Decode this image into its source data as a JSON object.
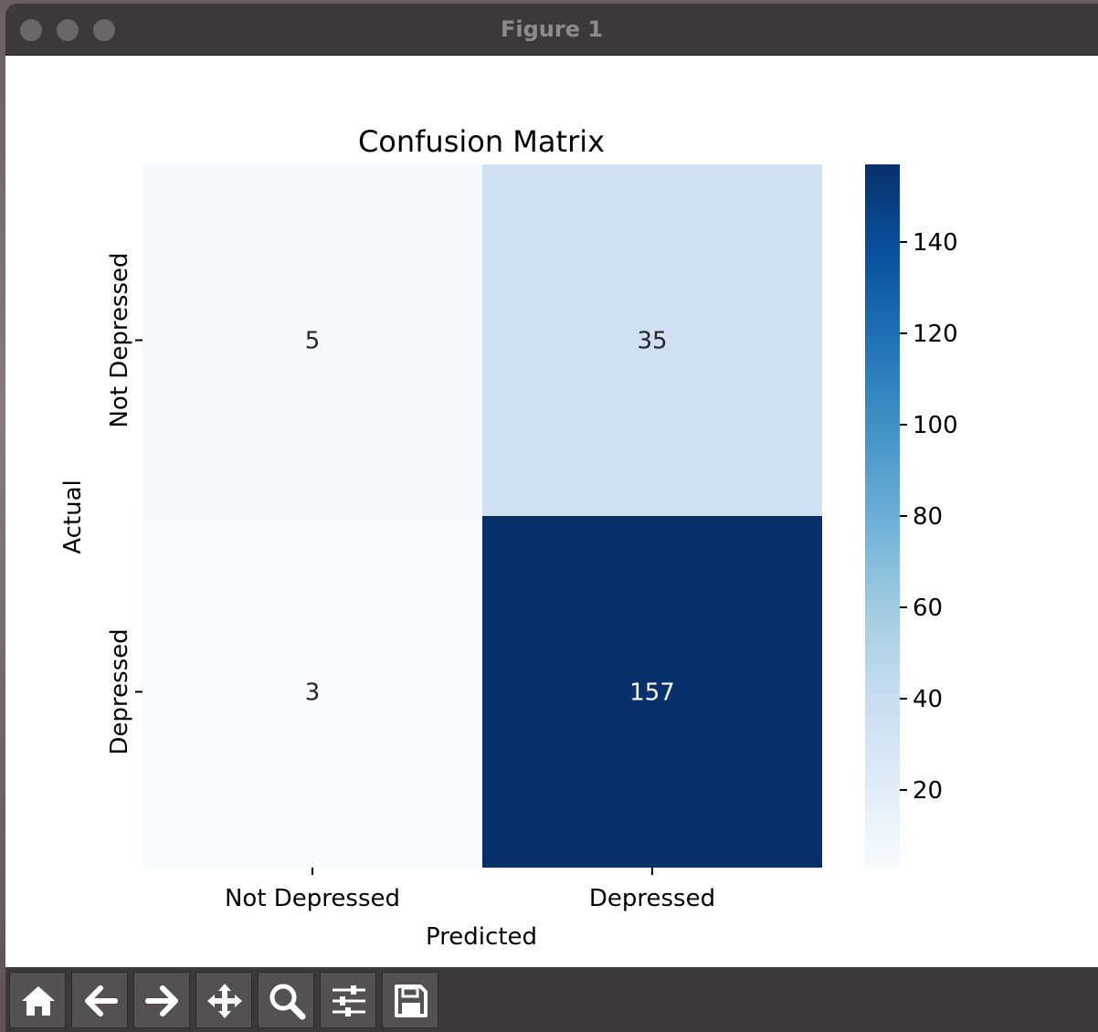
{
  "window": {
    "title": "Figure 1"
  },
  "toolbar": {
    "buttons": [
      {
        "icon": "home-icon"
      },
      {
        "icon": "back-arrow-icon"
      },
      {
        "icon": "forward-arrow-icon"
      },
      {
        "icon": "pan-icon"
      },
      {
        "icon": "zoom-icon"
      },
      {
        "icon": "subplots-config-icon"
      },
      {
        "icon": "save-icon"
      }
    ]
  },
  "chart_data": {
    "type": "heatmap",
    "title": "Confusion Matrix",
    "xlabel": "Predicted",
    "ylabel": "Actual",
    "x_categories": [
      "Not Depressed",
      "Depressed"
    ],
    "y_categories": [
      "Not Depressed",
      "Depressed"
    ],
    "values": [
      [
        5,
        35
      ],
      [
        3,
        157
      ]
    ],
    "colormap": "Blues",
    "colorbar": {
      "range": [
        3,
        157
      ],
      "ticks": [
        20,
        40,
        60,
        80,
        100,
        120,
        140
      ]
    },
    "grid": false
  }
}
